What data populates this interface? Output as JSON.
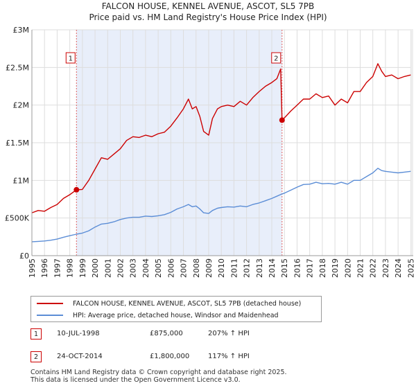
{
  "chart_data": {
    "type": "line",
    "title": "FALCON HOUSE, KENNEL AVENUE, ASCOT, SL5 7PB",
    "subtitle": "Price paid vs. HM Land Registry's House Price Index (HPI)",
    "xlim": [
      1995,
      2025.2
    ],
    "ylim": [
      0,
      3000000
    ],
    "x_ticks": [
      1995,
      1996,
      1997,
      1998,
      1999,
      2000,
      2001,
      2002,
      2003,
      2004,
      2005,
      2006,
      2007,
      2008,
      2009,
      2010,
      2011,
      2012,
      2013,
      2014,
      2015,
      2016,
      2017,
      2018,
      2019,
      2020,
      2021,
      2022,
      2023,
      2024,
      2025
    ],
    "x_tick_labels": [
      "1995",
      "1996",
      "1997",
      "1998",
      "1999",
      "2000",
      "2001",
      "2002",
      "2003",
      "2004",
      "2005",
      "2006",
      "2007",
      "2008",
      "2009",
      "2010",
      "2011",
      "2012",
      "2013",
      "2014",
      "2015",
      "2016",
      "2017",
      "2018",
      "2019",
      "2020",
      "2021",
      "2022",
      "2023",
      "2024",
      "2025"
    ],
    "y_ticks": [
      0,
      500000,
      1000000,
      1500000,
      2000000,
      2500000,
      3000000
    ],
    "y_tick_labels": [
      "£0",
      "£500K",
      "£1M",
      "£1.5M",
      "£2M",
      "£2.5M",
      "£3M"
    ],
    "shaded_region": [
      1998.53,
      2014.81
    ],
    "series": [
      {
        "name": "FALCON HOUSE, KENNEL AVENUE, ASCOT, SL5 7PB (detached house)",
        "color": "#cc0000",
        "x": [
          1995.0,
          1995.5,
          1996.0,
          1996.5,
          1997.0,
          1997.5,
          1998.0,
          1998.53,
          1999.0,
          1999.5,
          2000.0,
          2000.5,
          2001.0,
          2001.5,
          2002.0,
          2002.5,
          2003.0,
          2003.5,
          2004.0,
          2004.5,
          2005.0,
          2005.5,
          2006.0,
          2006.5,
          2007.0,
          2007.4,
          2007.7,
          2008.0,
          2008.3,
          2008.6,
          2009.0,
          2009.3,
          2009.7,
          2010.0,
          2010.5,
          2011.0,
          2011.5,
          2012.0,
          2012.5,
          2013.0,
          2013.5,
          2014.0,
          2014.4,
          2014.7,
          2014.81,
          2015.0,
          2015.5,
          2016.0,
          2016.5,
          2017.0,
          2017.5,
          2018.0,
          2018.5,
          2019.0,
          2019.5,
          2020.0,
          2020.5,
          2021.0,
          2021.5,
          2022.0,
          2022.4,
          2022.7,
          2023.0,
          2023.5,
          2024.0,
          2024.5,
          2025.0
        ],
        "values": [
          570000,
          600000,
          590000,
          640000,
          680000,
          760000,
          810000,
          875000,
          880000,
          1000000,
          1150000,
          1300000,
          1280000,
          1350000,
          1420000,
          1530000,
          1580000,
          1570000,
          1600000,
          1580000,
          1620000,
          1640000,
          1720000,
          1830000,
          1950000,
          2080000,
          1950000,
          1980000,
          1850000,
          1650000,
          1600000,
          1820000,
          1950000,
          1980000,
          2000000,
          1980000,
          2050000,
          2000000,
          2100000,
          2180000,
          2250000,
          2300000,
          2350000,
          2480000,
          1800000,
          1830000,
          1920000,
          2000000,
          2080000,
          2080000,
          2150000,
          2100000,
          2120000,
          2000000,
          2080000,
          2030000,
          2180000,
          2180000,
          2300000,
          2380000,
          2550000,
          2450000,
          2380000,
          2400000,
          2350000,
          2380000,
          2400000
        ]
      },
      {
        "name": "HPI: Average price, detached house, Windsor and Maidenhead",
        "color": "#5b8dd6",
        "x": [
          1995.0,
          1995.5,
          1996.0,
          1996.5,
          1997.0,
          1997.5,
          1998.0,
          1998.53,
          1999.0,
          1999.5,
          2000.0,
          2000.5,
          2001.0,
          2001.5,
          2002.0,
          2002.5,
          2003.0,
          2003.5,
          2004.0,
          2004.5,
          2005.0,
          2005.5,
          2006.0,
          2006.5,
          2007.0,
          2007.4,
          2007.7,
          2008.0,
          2008.3,
          2008.6,
          2009.0,
          2009.3,
          2009.7,
          2010.0,
          2010.5,
          2011.0,
          2011.5,
          2012.0,
          2012.5,
          2013.0,
          2013.5,
          2014.0,
          2014.4,
          2014.81,
          2015.0,
          2015.5,
          2016.0,
          2016.5,
          2017.0,
          2017.5,
          2018.0,
          2018.5,
          2019.0,
          2019.5,
          2020.0,
          2020.5,
          2021.0,
          2021.5,
          2022.0,
          2022.4,
          2022.7,
          2023.0,
          2023.5,
          2024.0,
          2024.5,
          2025.0
        ],
        "values": [
          185000,
          190000,
          195000,
          205000,
          220000,
          245000,
          265000,
          285000,
          300000,
          330000,
          380000,
          420000,
          430000,
          450000,
          480000,
          500000,
          510000,
          510000,
          525000,
          520000,
          530000,
          545000,
          575000,
          620000,
          650000,
          680000,
          650000,
          660000,
          620000,
          570000,
          560000,
          600000,
          630000,
          640000,
          650000,
          645000,
          660000,
          650000,
          680000,
          700000,
          730000,
          760000,
          790000,
          820000,
          830000,
          870000,
          910000,
          945000,
          950000,
          975000,
          955000,
          960000,
          950000,
          975000,
          950000,
          1000000,
          1000000,
          1050000,
          1100000,
          1160000,
          1130000,
          1120000,
          1110000,
          1100000,
          1110000,
          1120000
        ]
      }
    ],
    "markers": [
      {
        "label": "1",
        "x": 1998.53,
        "y": 875000
      },
      {
        "label": "2",
        "x": 2014.81,
        "y": 1800000
      }
    ]
  },
  "legend": {
    "items": [
      {
        "label": "FALCON HOUSE, KENNEL AVENUE, ASCOT, SL5 7PB (detached house)",
        "color": "#cc0000"
      },
      {
        "label": "HPI: Average price, detached house, Windsor and Maidenhead",
        "color": "#5b8dd6"
      }
    ]
  },
  "sales": [
    {
      "num": "1",
      "date": "10-JUL-1998",
      "price": "£875,000",
      "hpi": "207% ↑ HPI"
    },
    {
      "num": "2",
      "date": "24-OCT-2014",
      "price": "£1,800,000",
      "hpi": "117% ↑ HPI"
    }
  ],
  "footer": {
    "line1": "Contains HM Land Registry data © Crown copyright and database right 2025.",
    "line2": "This data is licensed under the Open Government Licence v3.0."
  }
}
